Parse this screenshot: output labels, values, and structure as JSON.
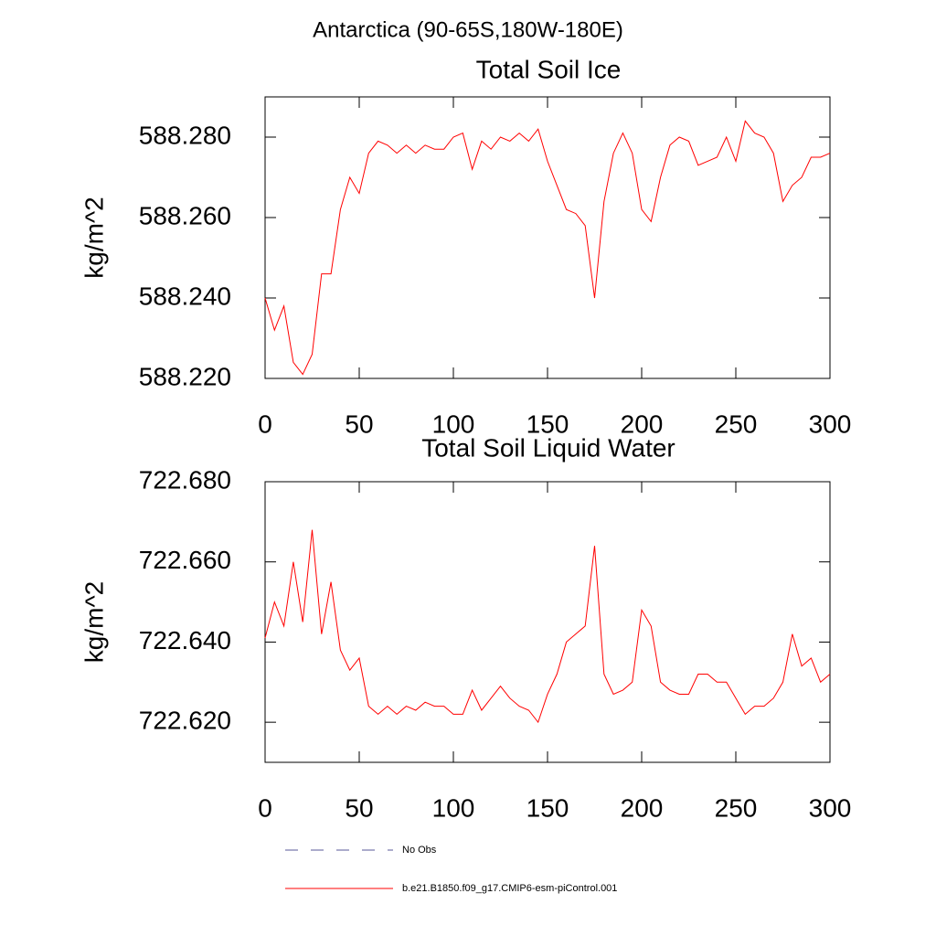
{
  "title": "Antarctica (90-65S,180W-180E)",
  "legend_extra": {
    "label": "No Obs",
    "color": "#5a5a9a"
  },
  "chart_data": [
    {
      "type": "line",
      "title": "Total Soil Ice",
      "y_label": "kg/m^2",
      "x": [
        0,
        5,
        10,
        15,
        20,
        25,
        30,
        35,
        40,
        45,
        50,
        55,
        60,
        65,
        70,
        75,
        80,
        85,
        90,
        95,
        100,
        105,
        110,
        115,
        120,
        125,
        130,
        135,
        140,
        145,
        150,
        155,
        160,
        165,
        170,
        175,
        180,
        185,
        190,
        195,
        200,
        205,
        210,
        215,
        220,
        225,
        230,
        235,
        240,
        245,
        250,
        255,
        260,
        265,
        270,
        275,
        280,
        285,
        290,
        295,
        300
      ],
      "series": [
        {
          "name": "b.e21.B1850.f09_g17.CMIP6-esm-piControl.001",
          "color": "#ff0000",
          "values": [
            588.24,
            588.232,
            588.238,
            588.224,
            588.221,
            588.226,
            588.246,
            588.246,
            588.262,
            588.27,
            588.266,
            588.276,
            588.279,
            588.278,
            588.276,
            588.278,
            588.276,
            588.278,
            588.277,
            588.277,
            588.28,
            588.281,
            588.272,
            588.279,
            588.277,
            588.28,
            588.279,
            588.281,
            588.279,
            588.282,
            588.274,
            588.268,
            588.262,
            588.261,
            588.258,
            588.24,
            588.264,
            588.276,
            588.281,
            588.276,
            588.262,
            588.259,
            588.27,
            588.278,
            588.28,
            588.279,
            588.273,
            588.274,
            588.275,
            588.28,
            588.274,
            588.284,
            588.281,
            588.28,
            588.276,
            588.264,
            588.268,
            588.27,
            588.275,
            588.275,
            588.276
          ]
        }
      ],
      "xlim": [
        0,
        300
      ],
      "xticks": [
        0,
        50,
        100,
        150,
        200,
        250,
        300
      ],
      "ylim": [
        588.22,
        588.29
      ],
      "yticks": [
        {
          "value": 588.22,
          "label": "588.220"
        },
        {
          "value": 588.24,
          "label": "588.240"
        },
        {
          "value": 588.26,
          "label": "588.260"
        },
        {
          "value": 588.28,
          "label": "588.280"
        }
      ]
    },
    {
      "type": "line",
      "title": "Total Soil Liquid Water",
      "y_label": "kg/m^2",
      "x": [
        0,
        5,
        10,
        15,
        20,
        25,
        30,
        35,
        40,
        45,
        50,
        55,
        60,
        65,
        70,
        75,
        80,
        85,
        90,
        95,
        100,
        105,
        110,
        115,
        120,
        125,
        130,
        135,
        140,
        145,
        150,
        155,
        160,
        165,
        170,
        175,
        180,
        185,
        190,
        195,
        200,
        205,
        210,
        215,
        220,
        225,
        230,
        235,
        240,
        245,
        250,
        255,
        260,
        265,
        270,
        275,
        280,
        285,
        290,
        295,
        300
      ],
      "series": [
        {
          "name": "b.e21.B1850.f09_g17.CMIP6-esm-piControl.001",
          "color": "#ff0000",
          "values": [
            722.641,
            722.65,
            722.644,
            722.66,
            722.645,
            722.668,
            722.642,
            722.655,
            722.638,
            722.633,
            722.636,
            722.624,
            722.622,
            722.624,
            722.622,
            722.624,
            722.623,
            722.625,
            722.624,
            722.624,
            722.622,
            722.622,
            722.628,
            722.623,
            722.626,
            722.629,
            722.626,
            722.624,
            722.623,
            722.62,
            722.627,
            722.632,
            722.64,
            722.642,
            722.644,
            722.664,
            722.632,
            722.627,
            722.628,
            722.63,
            722.648,
            722.644,
            722.63,
            722.628,
            722.627,
            722.627,
            722.632,
            722.632,
            722.63,
            722.63,
            722.626,
            722.622,
            722.624,
            722.624,
            722.626,
            722.63,
            722.642,
            722.634,
            722.636,
            722.63,
            722.632
          ]
        }
      ],
      "xlim": [
        0,
        300
      ],
      "xticks": [
        0,
        50,
        100,
        150,
        200,
        250,
        300
      ],
      "ylim": [
        722.61,
        722.68
      ],
      "yticks": [
        {
          "value": 722.62,
          "label": "722.620"
        },
        {
          "value": 722.64,
          "label": "722.640"
        },
        {
          "value": 722.66,
          "label": "722.660"
        },
        {
          "value": 722.68,
          "label": "722.680"
        }
      ]
    }
  ]
}
